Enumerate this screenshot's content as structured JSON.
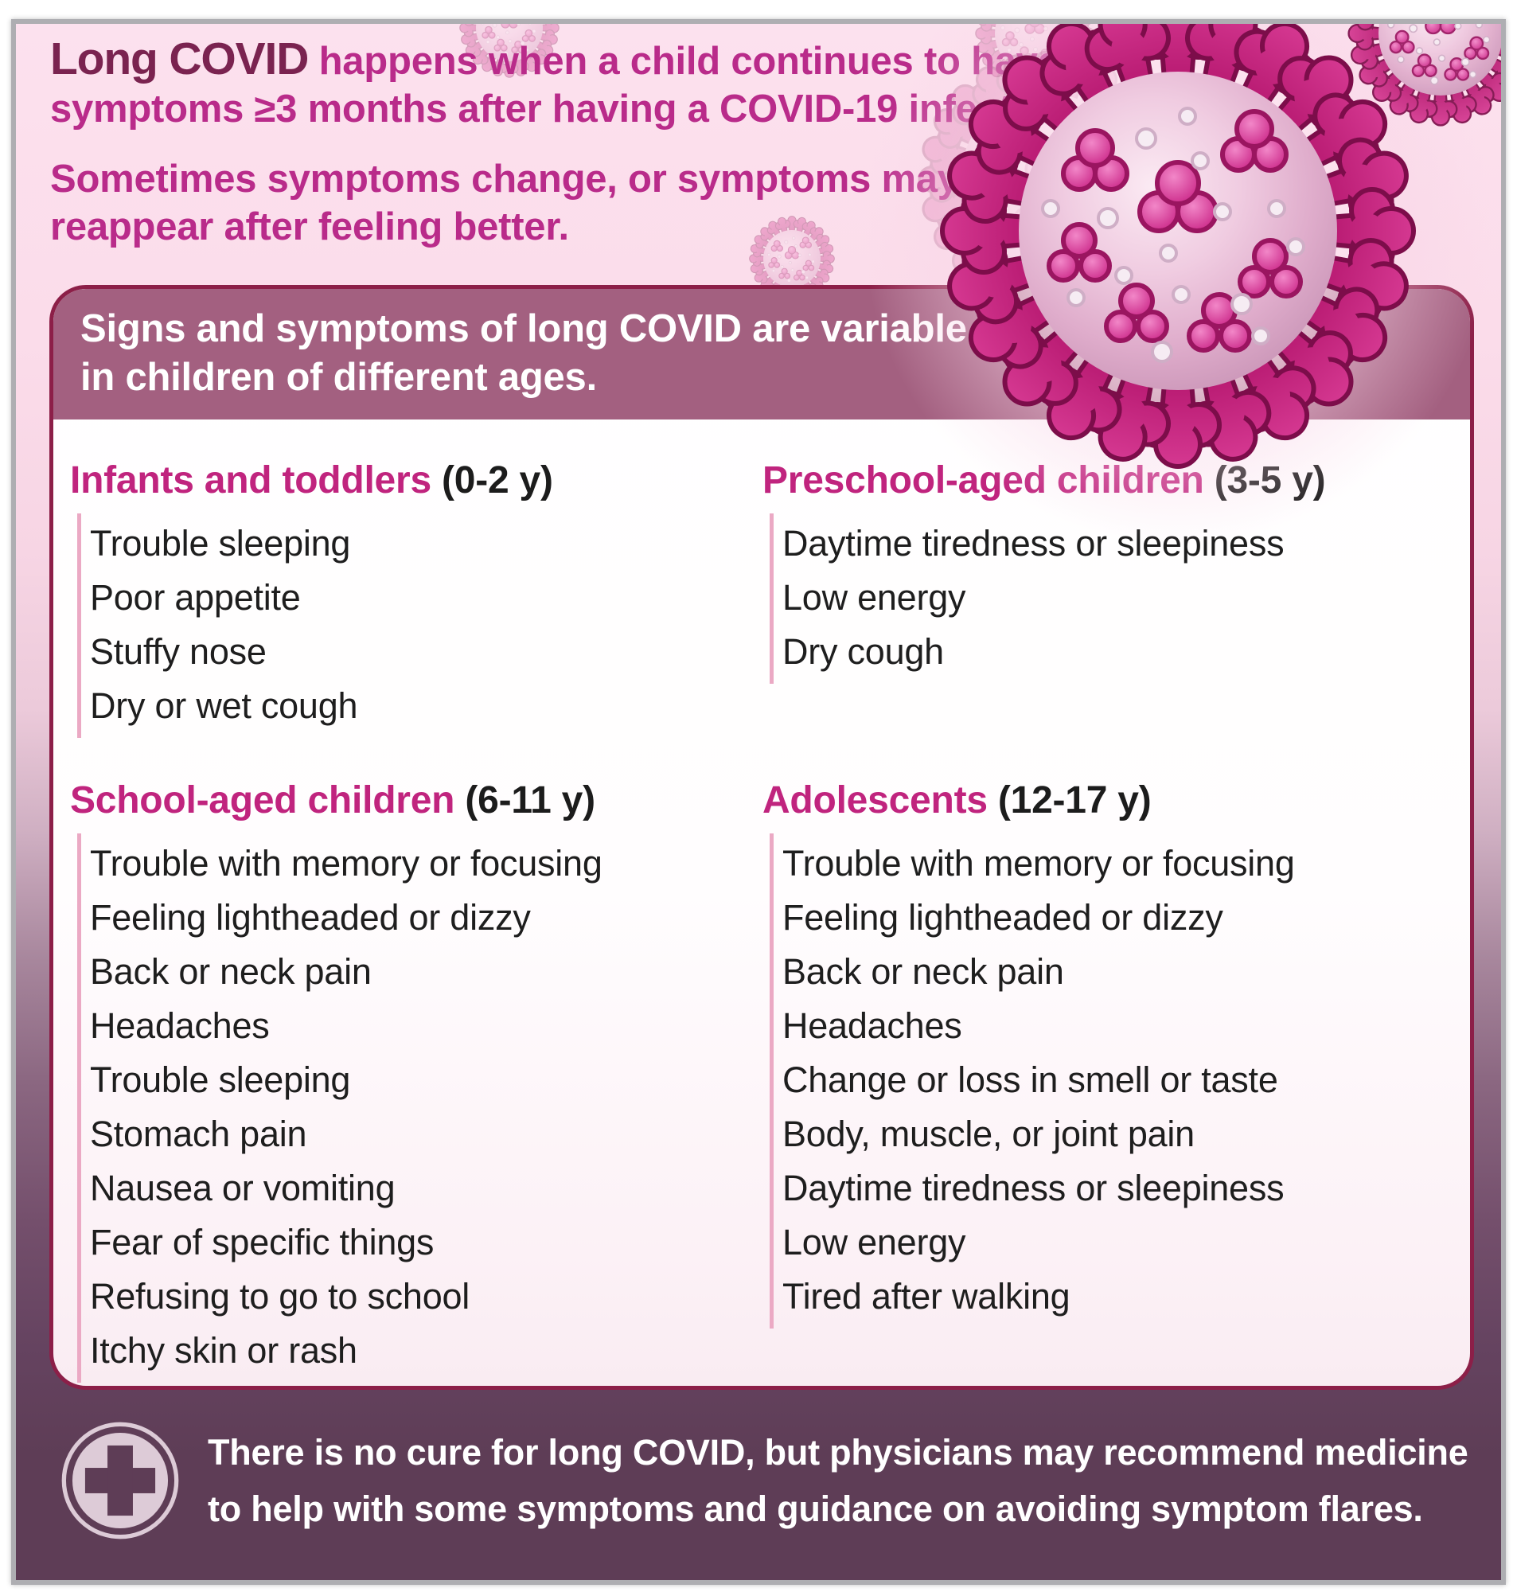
{
  "colors": {
    "accent_magenta": "#b92b8a",
    "dark_maroon": "#7a2350",
    "banner_mauve": "#a36080",
    "card_border": "#8c1f48",
    "footer_plum": "#5e3d56",
    "list_rule_pink": "#eba9c4",
    "background_pink_top": "#fbdcea",
    "heading_magenta": "#c0247e",
    "virus_magenta": "#c4187a"
  },
  "intro": {
    "lead": "Long COVID",
    "line1_rest": " happens when a child continues to have",
    "line2": "symptoms ≥3 months after having a COVID-19 infection.",
    "line3": "Sometimes symptoms change, or symptoms may",
    "line4": "reappear after feeling better."
  },
  "banner": {
    "line1": "Signs and symptoms of long COVID are variable",
    "line2": "in children of different ages."
  },
  "sections": [
    {
      "title": "Infants and toddlers",
      "age": "(0-2 y)",
      "items": [
        "Trouble sleeping",
        "Poor appetite",
        "Stuffy nose",
        "Dry or wet cough"
      ]
    },
    {
      "title": "Preschool-aged children",
      "age": "(3-5 y)",
      "items": [
        "Daytime tiredness or sleepiness",
        "Low energy",
        "Dry cough"
      ]
    },
    {
      "title": "School-aged children",
      "age": "(6-11 y)",
      "items": [
        "Trouble with memory or focusing",
        "Feeling lightheaded or dizzy",
        "Back or neck pain",
        "Headaches",
        "Trouble sleeping",
        "Stomach pain",
        "Nausea or vomiting",
        "Fear of specific things",
        "Refusing to go to school",
        "Itchy skin or rash"
      ]
    },
    {
      "title": "Adolescents",
      "age": "(12-17 y)",
      "items": [
        "Trouble with memory or focusing",
        "Feeling lightheaded or dizzy",
        "Back or neck pain",
        "Headaches",
        "Change or loss in smell or taste",
        "Body, muscle, or joint pain",
        "Daytime tiredness or sleepiness",
        "Low energy",
        "Tired after walking"
      ]
    }
  ],
  "footer": {
    "line1": "There is no cure for long COVID, but physicians may recommend medicine",
    "line2": "to help with some symptoms and guidance on avoiding symptom flares."
  }
}
